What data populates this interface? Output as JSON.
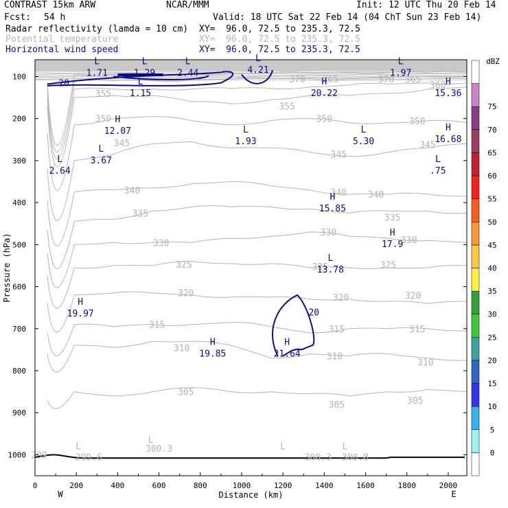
{
  "header": {
    "model": "CONTRAST 15km ARW",
    "org": "NCAR/MMM",
    "init": "Init: 12 UTC Thu 20 Feb 14",
    "fcst_label": "Fcst:",
    "fcst_value": "54 h",
    "valid": "Valid: 18 UTC Sat 22 Feb 14 (04 ChT Sun 23 Feb 14)"
  },
  "fields": [
    {
      "name": "Radar reflectivity (lamda = 10 cm)",
      "xy": "XY=  96.0, 72.5 to 235.3, 72.5",
      "color": "#000000"
    },
    {
      "name": "Potential temperature",
      "xy": "XY=  96.0, 72.5 to 235.3, 72.5",
      "color": "#b4b4b4"
    },
    {
      "name": "Horizontal wind speed",
      "xy": "XY=  96.0, 72.5 to 235.3, 72.5",
      "color": "#0a0a8c"
    }
  ],
  "chart_data": {
    "type": "contour",
    "xlabel": "Distance (km)",
    "ylabel": "Pressure (hPa)",
    "xlim": [
      0,
      2090
    ],
    "ylim": [
      1050,
      60
    ],
    "x_ticks": [
      0,
      200,
      400,
      600,
      800,
      1000,
      1200,
      1400,
      1600,
      1800,
      2000
    ],
    "y_ticks": [
      100,
      200,
      300,
      400,
      500,
      600,
      700,
      800,
      900,
      1000
    ],
    "x_end_labels": {
      "left": "W",
      "right": "E"
    },
    "theta_levels": [
      {
        "value": "305",
        "p": [
          1000,
          850,
          860,
          850,
          840,
          850,
          850,
          855,
          860,
          850,
          845,
          850
        ]
      },
      {
        "value": "310",
        "p": [
          980,
          740,
          745,
          730,
          730,
          740,
          770,
          760,
          765,
          760,
          770,
          775
        ]
      },
      {
        "value": "315",
        "p": [
          960,
          690,
          695,
          690,
          690,
          685,
          695,
          710,
          700,
          700,
          700,
          705
        ]
      },
      {
        "value": "320",
        "p": [
          940,
          620,
          615,
          615,
          620,
          625,
          625,
          630,
          630,
          635,
          640,
          635
        ]
      },
      {
        "value": "325",
        "p": [
          920,
          555,
          550,
          550,
          540,
          545,
          545,
          555,
          555,
          555,
          555,
          550
        ]
      },
      {
        "value": "330",
        "p": [
          900,
          500,
          495,
          495,
          495,
          485,
          480,
          470,
          480,
          485,
          490,
          495
        ]
      },
      {
        "value": "335",
        "p": [
          880,
          445,
          440,
          420,
          410,
          410,
          410,
          415,
          425,
          420,
          420,
          425
        ]
      },
      {
        "value": "340",
        "p": [
          860,
          375,
          370,
          365,
          355,
          350,
          360,
          370,
          380,
          380,
          380,
          385
        ]
      },
      {
        "value": "345",
        "p": [
          840,
          300,
          285,
          260,
          255,
          270,
          270,
          280,
          290,
          280,
          270,
          260
        ]
      },
      {
        "value": "350",
        "p": [
          820,
          215,
          200,
          195,
          205,
          215,
          205,
          200,
          210,
          210,
          205,
          210
        ]
      },
      {
        "value": "355",
        "p": [
          800,
          150,
          145,
          145,
          160,
          165,
          155,
          145,
          145,
          140,
          130,
          125
        ]
      },
      {
        "value": "360",
        "p": [
          780,
          130,
          130,
          130,
          130,
          128,
          128,
          125,
          120,
          118,
          115,
          115
        ]
      },
      {
        "value": "365",
        "p": [
          760,
          110,
          110,
          110,
          108,
          105,
          105,
          105,
          105,
          103,
          100,
          100
        ]
      },
      {
        "value": "370",
        "p": [
          740,
          95,
          95,
          95,
          95,
          92,
          92,
          92,
          90,
          90,
          90,
          90
        ]
      }
    ],
    "theta_x": [
      0,
      190,
      380,
      570,
      760,
      950,
      1140,
      1330,
      1520,
      1710,
      1900,
      2090
    ],
    "theta_labels": [
      {
        "text": "365",
        "x": 1430,
        "p": 106
      },
      {
        "text": "370",
        "x": 1270,
        "p": 106
      },
      {
        "text": "370",
        "x": 1700,
        "p": 106
      },
      {
        "text": "365",
        "x": 1830,
        "p": 106
      },
      {
        "text": "360",
        "x": 1950,
        "p": 120
      },
      {
        "text": "355",
        "x": 330,
        "p": 140
      },
      {
        "text": "355",
        "x": 1220,
        "p": 170
      },
      {
        "text": "350",
        "x": 330,
        "p": 200
      },
      {
        "text": "350",
        "x": 1400,
        "p": 200
      },
      {
        "text": "350",
        "x": 1850,
        "p": 205
      },
      {
        "text": "345",
        "x": 420,
        "p": 258
      },
      {
        "text": "345",
        "x": 1470,
        "p": 285
      },
      {
        "text": "345",
        "x": 1900,
        "p": 262
      },
      {
        "text": "340",
        "x": 470,
        "p": 370
      },
      {
        "text": "340",
        "x": 1470,
        "p": 375
      },
      {
        "text": "340",
        "x": 1650,
        "p": 380
      },
      {
        "text": "335",
        "x": 510,
        "p": 425
      },
      {
        "text": "335",
        "x": 1730,
        "p": 435
      },
      {
        "text": "330",
        "x": 610,
        "p": 495
      },
      {
        "text": "330",
        "x": 1420,
        "p": 470
      },
      {
        "text": "330",
        "x": 1810,
        "p": 488
      },
      {
        "text": "325",
        "x": 720,
        "p": 547
      },
      {
        "text": "325",
        "x": 1380,
        "p": 552
      },
      {
        "text": "325",
        "x": 1710,
        "p": 548
      },
      {
        "text": "320",
        "x": 730,
        "p": 615
      },
      {
        "text": "320",
        "x": 1480,
        "p": 625
      },
      {
        "text": "320",
        "x": 1830,
        "p": 620
      },
      {
        "text": "315",
        "x": 590,
        "p": 690
      },
      {
        "text": "315",
        "x": 1460,
        "p": 700
      },
      {
        "text": "315",
        "x": 1850,
        "p": 700
      },
      {
        "text": "310",
        "x": 710,
        "p": 745
      },
      {
        "text": "310",
        "x": 1450,
        "p": 765
      },
      {
        "text": "310",
        "x": 1890,
        "p": 780
      },
      {
        "text": "305",
        "x": 730,
        "p": 850
      },
      {
        "text": "305",
        "x": 1460,
        "p": 880
      },
      {
        "text": "305",
        "x": 1840,
        "p": 870
      },
      {
        "text": "300.3",
        "x": 600,
        "p": 985
      },
      {
        "text": "299.6",
        "x": 260,
        "p": 1005
      },
      {
        "text": "300.3",
        "x": 1370,
        "p": 1005
      },
      {
        "text": "300.8",
        "x": 1550,
        "p": 1005
      },
      {
        "text": "299",
        "x": 20,
        "p": 1000
      }
    ],
    "theta_markers": [
      {
        "text": "L",
        "x": 560,
        "p": 985
      },
      {
        "text": "L",
        "x": 210,
        "p": 1000
      },
      {
        "text": "L",
        "x": 1200,
        "p": 1000
      },
      {
        "text": "L",
        "x": 1500,
        "p": 1000
      }
    ],
    "wind_extrema": [
      {
        "type": "L",
        "value": "1.71",
        "x": 300,
        "p": 82
      },
      {
        "type": "L",
        "value": "1.29",
        "x": 530,
        "p": 82
      },
      {
        "type": "L",
        "value": "2.44",
        "x": 740,
        "p": 82
      },
      {
        "type": "L",
        "value": "4.21",
        "x": 1080,
        "p": 75
      },
      {
        "type": "L",
        "value": "1.97",
        "x": 1770,
        "p": 82
      },
      {
        "type": "L",
        "value": "1.15",
        "x": 510,
        "p": 130
      },
      {
        "type": "H",
        "value": "20.22",
        "x": 1400,
        "p": 130
      },
      {
        "type": "H",
        "value": "15.36",
        "x": 2000,
        "p": 130
      },
      {
        "type": "H",
        "value": "12.07",
        "x": 400,
        "p": 220
      },
      {
        "type": "L",
        "value": "1.93",
        "x": 1020,
        "p": 245
      },
      {
        "type": "L",
        "value": "5.30",
        "x": 1590,
        "p": 245
      },
      {
        "type": "H",
        "value": "16.68",
        "x": 2000,
        "p": 240
      },
      {
        "type": "L",
        "value": "3.67",
        "x": 320,
        "p": 290
      },
      {
        "type": "L",
        "value": "2.64",
        "x": 120,
        "p": 315
      },
      {
        "type": "L",
        "value": ".75",
        "x": 1950,
        "p": 315
      },
      {
        "type": "H",
        "value": "15.85",
        "x": 1440,
        "p": 405
      },
      {
        "type": "H",
        "value": "17.9",
        "x": 1730,
        "p": 490
      },
      {
        "type": "L",
        "value": "13.78",
        "x": 1430,
        "p": 550
      },
      {
        "type": "H",
        "value": "19.97",
        "x": 220,
        "p": 655
      },
      {
        "type": "H",
        "value": "19.85",
        "x": 860,
        "p": 750
      },
      {
        "type": "H",
        "value": "21.64",
        "x": 1220,
        "p": 750
      }
    ],
    "wind_contour_labels": [
      {
        "text": "20",
        "x": 140,
        "p": 115
      },
      {
        "text": "20",
        "x": 1350,
        "p": 660
      }
    ],
    "colorbar": {
      "unit": "dBZ",
      "levels": [
        "0",
        "5",
        "10",
        "15",
        "20",
        "25",
        "30",
        "35",
        "40",
        "45",
        "50",
        "55",
        "60",
        "65",
        "70",
        "75"
      ],
      "colors": [
        "#ffffff",
        "#9ff2f2",
        "#33b4f0",
        "#3232f0",
        "#2f64c8",
        "#3ca0a0",
        "#3cc83c",
        "#32a032",
        "#fff03c",
        "#ffc83c",
        "#ff9632",
        "#ff5a1e",
        "#ff1e1e",
        "#c81e32",
        "#a03c64",
        "#8c3c8c",
        "#c882c8",
        "#ffffff"
      ]
    }
  }
}
